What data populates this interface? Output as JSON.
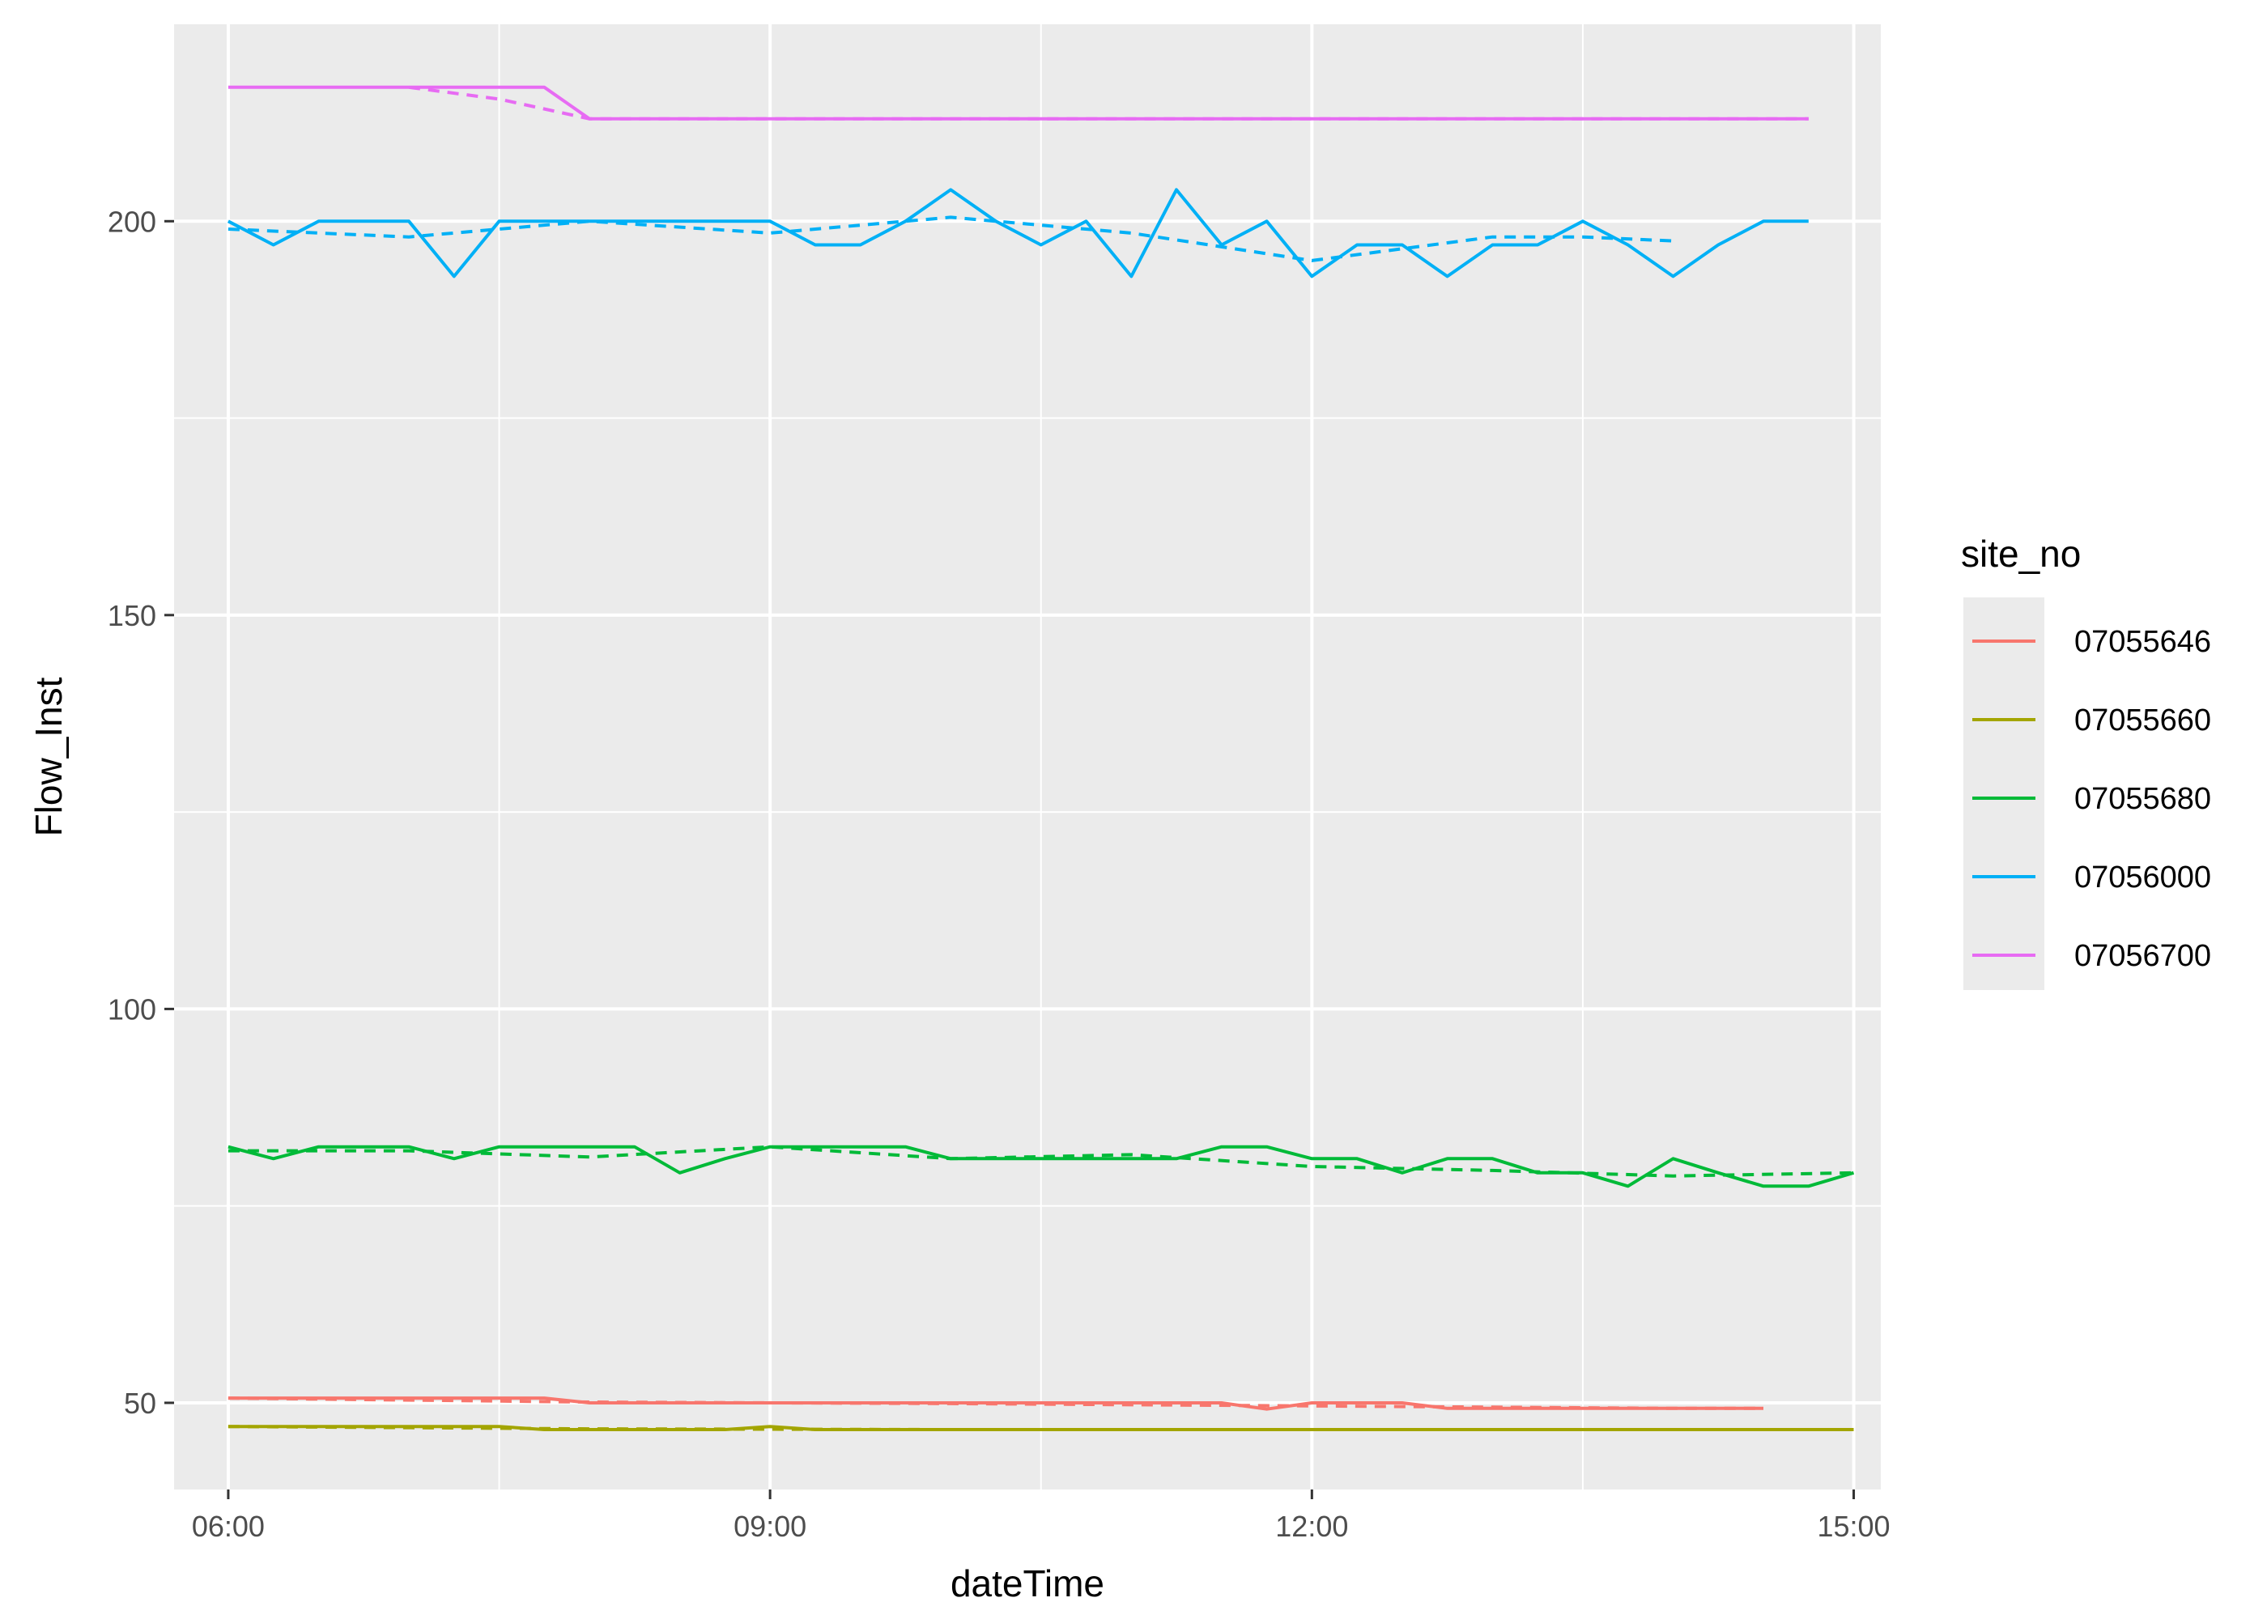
{
  "chart_data": {
    "type": "line",
    "xlabel": "dateTime",
    "ylabel": "Flow_Inst",
    "legend_title": "site_no",
    "legend_position": "right",
    "grid": true,
    "x_unit": "time of day (hours)",
    "xlim": [
      5.7,
      15.15
    ],
    "ylim": [
      39,
      225
    ],
    "x_ticks": [
      6,
      9,
      12,
      15
    ],
    "x_tick_labels": [
      "06:00",
      "09:00",
      "12:00",
      "15:00"
    ],
    "y_ticks": [
      50,
      100,
      150,
      200
    ],
    "y_tick_labels": [
      "50",
      "100",
      "150",
      "200"
    ],
    "line_styles": {
      "observed": "solid",
      "smoothed": "dashed"
    },
    "series": [
      {
        "name": "07055646",
        "color": "#F8766D",
        "x": [
          6.0,
          7.75,
          8.0,
          11.5,
          11.75,
          12.0,
          12.5,
          12.75,
          14.5
        ],
        "values": [
          50.6,
          50.6,
          50.0,
          50.0,
          49.2,
          50.0,
          50.0,
          49.3,
          49.3
        ],
        "smooth_x": [
          6.0,
          8.0,
          10.0,
          12.0,
          14.0,
          14.5
        ],
        "smooth_values": [
          50.6,
          50.1,
          49.9,
          49.6,
          49.3,
          49.3
        ]
      },
      {
        "name": "07055660",
        "color": "#A3A500",
        "x": [
          6.0,
          7.5,
          7.75,
          8.75,
          9.0,
          9.25,
          15.0
        ],
        "values": [
          47.0,
          47.0,
          46.6,
          46.6,
          47.0,
          46.6,
          46.6
        ],
        "smooth_x": [
          6.0,
          8.0,
          10.0,
          12.0,
          15.0
        ],
        "smooth_values": [
          47.0,
          46.7,
          46.6,
          46.6,
          46.6
        ]
      },
      {
        "name": "07055680",
        "color": "#00BA38",
        "x": [
          6.0,
          6.25,
          6.5,
          6.75,
          7.0,
          7.25,
          7.5,
          7.75,
          8.0,
          8.25,
          8.5,
          8.75,
          9.0,
          9.25,
          9.5,
          9.75,
          10.0,
          10.25,
          10.5,
          10.75,
          11.0,
          11.25,
          11.5,
          11.75,
          12.0,
          12.25,
          12.5,
          12.75,
          13.0,
          13.25,
          13.5,
          13.75,
          14.0,
          14.25,
          14.5,
          14.75,
          15.0
        ],
        "values": [
          82.5,
          81.0,
          82.5,
          82.5,
          82.5,
          81.0,
          82.5,
          82.5,
          82.5,
          82.5,
          79.2,
          81.0,
          82.5,
          82.5,
          82.5,
          82.5,
          81.0,
          81.0,
          81.0,
          81.0,
          81.0,
          81.0,
          82.5,
          82.5,
          81.0,
          81.0,
          79.2,
          81.0,
          81.0,
          79.2,
          79.2,
          77.5,
          81.0,
          79.2,
          77.5,
          77.5,
          79.2
        ],
        "smooth_x": [
          6.0,
          7.0,
          8.0,
          9.0,
          10.0,
          11.0,
          12.0,
          13.0,
          14.0,
          15.0
        ],
        "smooth_values": [
          82.0,
          82.0,
          81.2,
          82.5,
          81.0,
          81.5,
          80.0,
          79.5,
          78.8,
          79.2
        ]
      },
      {
        "name": "07056000",
        "color": "#00B0F6",
        "x": [
          6.0,
          6.25,
          6.5,
          6.75,
          7.0,
          7.25,
          7.5,
          7.75,
          8.0,
          8.25,
          8.5,
          8.75,
          9.0,
          9.25,
          9.5,
          9.75,
          10.0,
          10.25,
          10.5,
          10.75,
          11.0,
          11.25,
          11.5,
          11.75,
          12.0,
          12.25,
          12.5,
          12.75,
          13.0,
          13.25,
          13.5,
          13.75,
          14.0,
          14.25,
          14.5,
          14.75
        ],
        "values": [
          200,
          197,
          200,
          200,
          200,
          193,
          200,
          200,
          200,
          200,
          200,
          200,
          200,
          197,
          197,
          200,
          204,
          200,
          197,
          200,
          193,
          204,
          197,
          200,
          193,
          197,
          197,
          193,
          197,
          197,
          200,
          197,
          193,
          197,
          200,
          200
        ],
        "smooth_x": [
          6.0,
          7.0,
          8.0,
          9.0,
          10.0,
          11.0,
          12.0,
          13.0,
          13.5,
          14.0
        ],
        "smooth_values": [
          199,
          198,
          200,
          198.5,
          200.5,
          198.5,
          195,
          198,
          198,
          197.5
        ]
      },
      {
        "name": "07056700",
        "color": "#E76BF3",
        "x": [
          6.0,
          7.75,
          8.0,
          14.75
        ],
        "values": [
          217,
          217,
          213,
          213
        ],
        "smooth_x": [
          7.0,
          7.5,
          8.0,
          14.75
        ],
        "smooth_values": [
          217,
          215.5,
          213,
          213
        ]
      }
    ]
  },
  "legend": {
    "title": "site_no",
    "items": [
      "07055646",
      "07055660",
      "07055680",
      "07056000",
      "07056700"
    ]
  },
  "axes": {
    "x_title": "dateTime",
    "y_title": "Flow_Inst",
    "x_tick_labels": [
      "06:00",
      "09:00",
      "12:00",
      "15:00"
    ],
    "y_tick_labels": [
      "50",
      "100",
      "150",
      "200"
    ]
  }
}
